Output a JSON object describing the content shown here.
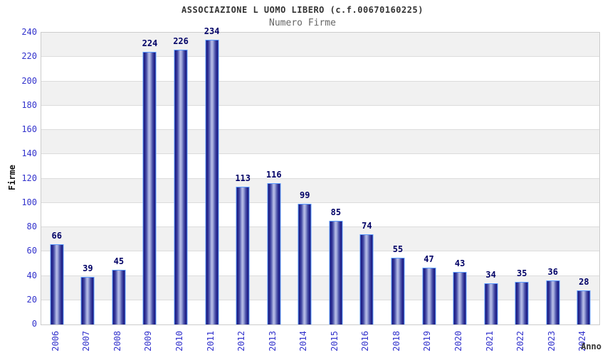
{
  "header": {
    "title": "ASSOCIAZIONE L UOMO LIBERO (c.f.00670160225)",
    "subtitle": "Numero Firme"
  },
  "chart_data": {
    "type": "bar",
    "title": "ASSOCIAZIONE L UOMO LIBERO (c.f.00670160225)",
    "subtitle": "Numero Firme",
    "xlabel": "Anno",
    "ylabel": "Firme",
    "categories": [
      "2006",
      "2007",
      "2008",
      "2009",
      "2010",
      "2011",
      "2012",
      "2013",
      "2014",
      "2015",
      "2016",
      "2018",
      "2019",
      "2020",
      "2021",
      "2022",
      "2023",
      "2024"
    ],
    "values": [
      66,
      39,
      45,
      224,
      226,
      234,
      113,
      116,
      99,
      85,
      74,
      55,
      47,
      43,
      34,
      35,
      36,
      28
    ],
    "ylim": [
      0,
      240
    ],
    "ytick_step": 20,
    "yticks": [
      0,
      20,
      40,
      60,
      80,
      100,
      120,
      140,
      160,
      180,
      200,
      220,
      240
    ],
    "grid": "horizontal-alternating-bands",
    "legend": "none",
    "value_labels": "above-bars",
    "colors": {
      "bar_edge_dark": "#181878",
      "bar_center_light": "#b9bfe8",
      "bar_border": "#5b9bff",
      "tick_label": "#3333cc",
      "value_label": "#000066",
      "band_gray": "#f1f1f1",
      "gridline": "#dcdcdc",
      "plot_border": "#cccccc",
      "title": "#333333",
      "subtitle": "#666666"
    }
  }
}
